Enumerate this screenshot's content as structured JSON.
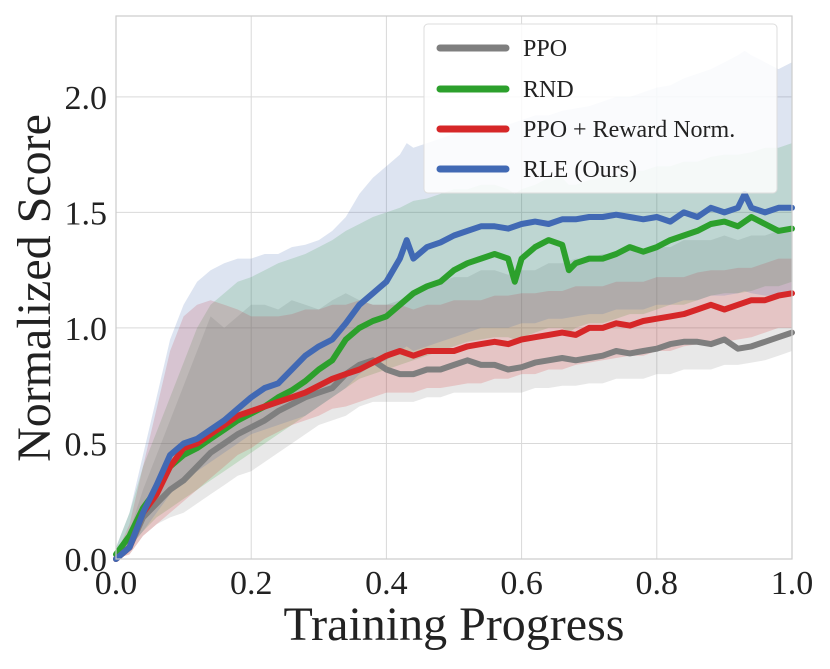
{
  "chart_data": {
    "type": "line",
    "title": "",
    "xlabel": "Training Progress",
    "ylabel": "Normalized Score",
    "xlim": [
      0.0,
      1.0
    ],
    "ylim": [
      0.0,
      2.35
    ],
    "xticks": [
      0.0,
      0.2,
      0.4,
      0.6,
      0.8,
      1.0
    ],
    "xtick_labels": [
      "0.0",
      "0.2",
      "0.4",
      "0.6",
      "0.8",
      "1.0"
    ],
    "yticks": [
      0.0,
      0.5,
      1.0,
      1.5,
      2.0
    ],
    "ytick_labels": [
      "0.0",
      "0.5",
      "1.0",
      "1.5",
      "2.0"
    ],
    "grid": true,
    "legend_position": "top-right",
    "series": [
      {
        "name": "PPO",
        "color": "#7f7f7f",
        "x": [
          0.0,
          0.02,
          0.04,
          0.06,
          0.08,
          0.1,
          0.12,
          0.14,
          0.16,
          0.18,
          0.2,
          0.22,
          0.24,
          0.26,
          0.28,
          0.3,
          0.32,
          0.34,
          0.36,
          0.38,
          0.4,
          0.42,
          0.44,
          0.46,
          0.48,
          0.5,
          0.52,
          0.54,
          0.56,
          0.58,
          0.6,
          0.62,
          0.64,
          0.66,
          0.68,
          0.7,
          0.72,
          0.74,
          0.76,
          0.78,
          0.8,
          0.82,
          0.84,
          0.86,
          0.88,
          0.9,
          0.92,
          0.94,
          0.96,
          0.98,
          1.0
        ],
        "y": [
          0.0,
          0.05,
          0.18,
          0.24,
          0.3,
          0.34,
          0.4,
          0.46,
          0.5,
          0.54,
          0.57,
          0.6,
          0.64,
          0.67,
          0.7,
          0.72,
          0.74,
          0.8,
          0.84,
          0.86,
          0.82,
          0.8,
          0.8,
          0.82,
          0.82,
          0.84,
          0.86,
          0.84,
          0.84,
          0.82,
          0.83,
          0.85,
          0.86,
          0.87,
          0.86,
          0.87,
          0.88,
          0.9,
          0.89,
          0.9,
          0.91,
          0.93,
          0.94,
          0.94,
          0.93,
          0.95,
          0.91,
          0.92,
          0.94,
          0.96,
          0.98
        ],
        "upper": [
          0.02,
          0.12,
          0.3,
          0.45,
          0.6,
          0.75,
          0.9,
          1.05,
          1.0,
          1.05,
          1.1,
          1.1,
          1.08,
          1.12,
          1.1,
          1.08,
          1.12,
          1.15,
          1.12,
          1.1,
          1.1,
          1.12,
          1.15,
          1.18,
          1.2,
          1.22,
          1.22,
          1.25,
          1.25,
          1.23,
          1.25,
          1.25,
          1.28,
          1.28,
          1.3,
          1.3,
          1.32,
          1.32,
          1.35,
          1.33,
          1.35,
          1.35,
          1.38,
          1.38,
          1.38,
          1.4,
          1.38,
          1.4,
          1.4,
          1.42,
          1.42
        ],
        "lower": [
          0.0,
          0.02,
          0.1,
          0.15,
          0.18,
          0.2,
          0.24,
          0.28,
          0.32,
          0.36,
          0.38,
          0.42,
          0.46,
          0.5,
          0.54,
          0.58,
          0.6,
          0.62,
          0.66,
          0.68,
          0.68,
          0.68,
          0.68,
          0.7,
          0.7,
          0.72,
          0.72,
          0.72,
          0.72,
          0.72,
          0.72,
          0.74,
          0.74,
          0.75,
          0.75,
          0.76,
          0.76,
          0.78,
          0.78,
          0.78,
          0.8,
          0.8,
          0.82,
          0.82,
          0.82,
          0.84,
          0.84,
          0.85,
          0.86,
          0.88,
          0.9
        ]
      },
      {
        "name": "RND",
        "color": "#2ca02c",
        "x": [
          0.0,
          0.02,
          0.04,
          0.06,
          0.08,
          0.1,
          0.12,
          0.14,
          0.16,
          0.18,
          0.2,
          0.22,
          0.24,
          0.26,
          0.28,
          0.3,
          0.32,
          0.34,
          0.36,
          0.38,
          0.4,
          0.42,
          0.44,
          0.46,
          0.48,
          0.5,
          0.52,
          0.54,
          0.56,
          0.58,
          0.59,
          0.6,
          0.62,
          0.64,
          0.66,
          0.67,
          0.68,
          0.7,
          0.72,
          0.74,
          0.76,
          0.78,
          0.8,
          0.82,
          0.84,
          0.86,
          0.88,
          0.9,
          0.92,
          0.94,
          0.96,
          0.98,
          1.0
        ],
        "y": [
          0.02,
          0.1,
          0.22,
          0.3,
          0.4,
          0.45,
          0.48,
          0.52,
          0.56,
          0.6,
          0.63,
          0.66,
          0.7,
          0.73,
          0.77,
          0.82,
          0.86,
          0.95,
          1.0,
          1.03,
          1.05,
          1.1,
          1.15,
          1.18,
          1.2,
          1.25,
          1.28,
          1.3,
          1.32,
          1.3,
          1.2,
          1.3,
          1.35,
          1.38,
          1.36,
          1.25,
          1.28,
          1.3,
          1.3,
          1.32,
          1.35,
          1.33,
          1.35,
          1.38,
          1.4,
          1.42,
          1.45,
          1.46,
          1.44,
          1.48,
          1.45,
          1.42,
          1.43
        ],
        "upper": [
          0.05,
          0.2,
          0.4,
          0.55,
          0.7,
          0.85,
          1.0,
          1.1,
          1.15,
          1.2,
          1.22,
          1.25,
          1.28,
          1.3,
          1.32,
          1.35,
          1.38,
          1.42,
          1.45,
          1.48,
          1.5,
          1.52,
          1.55,
          1.56,
          1.58,
          1.6,
          1.6,
          1.62,
          1.62,
          1.6,
          1.58,
          1.6,
          1.62,
          1.65,
          1.65,
          1.62,
          1.62,
          1.64,
          1.65,
          1.66,
          1.68,
          1.68,
          1.7,
          1.7,
          1.72,
          1.72,
          1.74,
          1.75,
          1.75,
          1.76,
          1.78,
          1.78,
          1.8
        ],
        "lower": [
          0.0,
          0.05,
          0.12,
          0.18,
          0.22,
          0.26,
          0.3,
          0.34,
          0.38,
          0.42,
          0.46,
          0.5,
          0.54,
          0.58,
          0.62,
          0.66,
          0.7,
          0.74,
          0.78,
          0.8,
          0.82,
          0.84,
          0.86,
          0.88,
          0.9,
          0.92,
          0.94,
          0.95,
          0.96,
          0.96,
          0.95,
          0.96,
          0.98,
          1.0,
          1.0,
          0.98,
          1.0,
          1.02,
          1.02,
          1.04,
          1.06,
          1.06,
          1.08,
          1.1,
          1.1,
          1.12,
          1.14,
          1.15,
          1.15,
          1.16,
          1.18,
          1.18,
          1.2
        ]
      },
      {
        "name": "PPO + Reward Norm.",
        "color": "#d62728",
        "x": [
          0.0,
          0.02,
          0.04,
          0.06,
          0.08,
          0.1,
          0.12,
          0.14,
          0.16,
          0.18,
          0.2,
          0.22,
          0.24,
          0.26,
          0.28,
          0.3,
          0.32,
          0.34,
          0.36,
          0.38,
          0.4,
          0.42,
          0.44,
          0.46,
          0.48,
          0.5,
          0.52,
          0.54,
          0.56,
          0.58,
          0.6,
          0.62,
          0.64,
          0.66,
          0.68,
          0.7,
          0.72,
          0.74,
          0.76,
          0.78,
          0.8,
          0.82,
          0.84,
          0.86,
          0.88,
          0.9,
          0.92,
          0.94,
          0.96,
          0.98,
          1.0
        ],
        "y": [
          0.0,
          0.05,
          0.2,
          0.28,
          0.4,
          0.48,
          0.5,
          0.54,
          0.58,
          0.62,
          0.64,
          0.66,
          0.68,
          0.7,
          0.72,
          0.75,
          0.78,
          0.8,
          0.82,
          0.85,
          0.88,
          0.9,
          0.88,
          0.9,
          0.9,
          0.9,
          0.92,
          0.93,
          0.94,
          0.93,
          0.95,
          0.96,
          0.97,
          0.98,
          0.97,
          1.0,
          1.0,
          1.02,
          1.01,
          1.03,
          1.04,
          1.05,
          1.06,
          1.08,
          1.1,
          1.08,
          1.1,
          1.12,
          1.12,
          1.14,
          1.15
        ],
        "upper": [
          0.02,
          0.15,
          0.4,
          0.65,
          0.9,
          1.05,
          1.1,
          1.12,
          1.1,
          1.08,
          1.05,
          1.05,
          1.05,
          1.06,
          1.08,
          1.08,
          1.1,
          1.1,
          1.12,
          1.1,
          1.1,
          1.1,
          1.08,
          1.1,
          1.1,
          1.12,
          1.12,
          1.12,
          1.14,
          1.14,
          1.15,
          1.15,
          1.16,
          1.16,
          1.18,
          1.18,
          1.18,
          1.2,
          1.2,
          1.2,
          1.22,
          1.22,
          1.22,
          1.24,
          1.25,
          1.25,
          1.26,
          1.26,
          1.28,
          1.3,
          1.3
        ],
        "lower": [
          0.0,
          0.02,
          0.1,
          0.15,
          0.2,
          0.25,
          0.3,
          0.35,
          0.4,
          0.45,
          0.48,
          0.52,
          0.55,
          0.58,
          0.6,
          0.62,
          0.65,
          0.66,
          0.68,
          0.7,
          0.72,
          0.72,
          0.72,
          0.74,
          0.74,
          0.75,
          0.76,
          0.76,
          0.78,
          0.78,
          0.8,
          0.8,
          0.82,
          0.82,
          0.84,
          0.85,
          0.86,
          0.87,
          0.88,
          0.88,
          0.9,
          0.9,
          0.92,
          0.93,
          0.94,
          0.94,
          0.95,
          0.96,
          0.98,
          1.0,
          1.0
        ]
      },
      {
        "name": "RLE (Ours)",
        "color": "#4169b4",
        "x": [
          0.0,
          0.02,
          0.04,
          0.06,
          0.08,
          0.1,
          0.12,
          0.14,
          0.16,
          0.18,
          0.2,
          0.22,
          0.24,
          0.26,
          0.28,
          0.3,
          0.32,
          0.34,
          0.36,
          0.38,
          0.4,
          0.42,
          0.43,
          0.44,
          0.46,
          0.48,
          0.5,
          0.52,
          0.54,
          0.56,
          0.58,
          0.6,
          0.62,
          0.64,
          0.66,
          0.68,
          0.7,
          0.72,
          0.74,
          0.76,
          0.78,
          0.8,
          0.82,
          0.84,
          0.86,
          0.88,
          0.9,
          0.92,
          0.93,
          0.94,
          0.96,
          0.98,
          1.0
        ],
        "y": [
          0.0,
          0.05,
          0.2,
          0.32,
          0.45,
          0.5,
          0.52,
          0.56,
          0.6,
          0.65,
          0.7,
          0.74,
          0.76,
          0.82,
          0.88,
          0.92,
          0.95,
          1.02,
          1.1,
          1.15,
          1.2,
          1.3,
          1.38,
          1.3,
          1.35,
          1.37,
          1.4,
          1.42,
          1.44,
          1.44,
          1.43,
          1.45,
          1.46,
          1.45,
          1.47,
          1.47,
          1.48,
          1.48,
          1.49,
          1.48,
          1.47,
          1.48,
          1.46,
          1.5,
          1.48,
          1.52,
          1.5,
          1.52,
          1.58,
          1.52,
          1.5,
          1.52,
          1.52
        ],
        "upper": [
          0.05,
          0.2,
          0.45,
          0.7,
          0.95,
          1.1,
          1.2,
          1.25,
          1.28,
          1.3,
          1.3,
          1.32,
          1.32,
          1.35,
          1.36,
          1.38,
          1.42,
          1.48,
          1.58,
          1.65,
          1.7,
          1.75,
          1.8,
          1.78,
          1.8,
          1.82,
          1.84,
          1.85,
          1.86,
          1.88,
          1.88,
          1.9,
          1.92,
          1.92,
          1.94,
          1.95,
          1.96,
          1.98,
          2.0,
          2.0,
          2.02,
          2.04,
          2.05,
          2.08,
          2.1,
          2.12,
          2.15,
          2.18,
          2.2,
          2.18,
          2.15,
          2.12,
          2.15
        ],
        "lower": [
          0.0,
          0.05,
          0.12,
          0.2,
          0.28,
          0.34,
          0.38,
          0.42,
          0.46,
          0.5,
          0.54,
          0.56,
          0.58,
          0.6,
          0.62,
          0.66,
          0.7,
          0.74,
          0.8,
          0.84,
          0.86,
          0.9,
          0.92,
          0.9,
          0.92,
          0.94,
          0.96,
          0.98,
          1.0,
          1.0,
          1.0,
          1.02,
          1.02,
          1.04,
          1.04,
          1.05,
          1.06,
          1.06,
          1.08,
          1.08,
          1.08,
          1.1,
          1.1,
          1.12,
          1.12,
          1.14,
          1.14,
          1.15,
          1.16,
          1.15,
          1.14,
          1.14,
          1.15
        ]
      }
    ]
  }
}
